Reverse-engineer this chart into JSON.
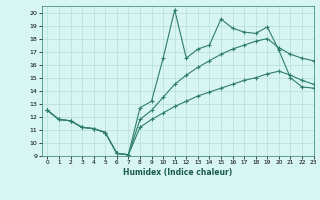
{
  "xlabel": "Humidex (Indice chaleur)",
  "bg_color": "#d6f5f3",
  "grid_color": "#b8dedd",
  "line_color": "#2e7d6e",
  "marker": "+",
  "xlim": [
    -0.5,
    23
  ],
  "ylim": [
    9,
    20.5
  ],
  "xticks": [
    0,
    1,
    2,
    3,
    4,
    5,
    6,
    7,
    8,
    9,
    10,
    11,
    12,
    13,
    14,
    15,
    16,
    17,
    18,
    19,
    20,
    21,
    22,
    23
  ],
  "yticks": [
    9,
    10,
    11,
    12,
    13,
    14,
    15,
    16,
    17,
    18,
    19,
    20
  ],
  "series": [
    {
      "x": [
        0,
        1,
        2,
        3,
        4,
        5,
        6,
        7,
        8,
        9,
        10,
        11,
        12,
        13,
        14,
        15,
        16,
        17,
        18,
        19,
        20,
        21,
        22,
        23
      ],
      "y": [
        12.5,
        11.8,
        11.7,
        11.2,
        11.1,
        10.8,
        9.2,
        9.1,
        12.7,
        13.2,
        16.5,
        20.2,
        16.5,
        17.2,
        17.5,
        19.5,
        18.8,
        18.5,
        18.4,
        18.9,
        17.1,
        15.0,
        14.3,
        14.2
      ]
    },
    {
      "x": [
        0,
        1,
        2,
        3,
        4,
        5,
        6,
        7,
        8,
        9,
        10,
        11,
        12,
        13,
        14,
        15,
        16,
        17,
        18,
        19,
        20,
        21,
        22,
        23
      ],
      "y": [
        12.5,
        11.8,
        11.7,
        11.2,
        11.1,
        10.8,
        9.2,
        9.1,
        11.8,
        12.5,
        13.5,
        14.5,
        15.2,
        15.8,
        16.3,
        16.8,
        17.2,
        17.5,
        17.8,
        18.0,
        17.3,
        16.8,
        16.5,
        16.3
      ]
    },
    {
      "x": [
        0,
        1,
        2,
        3,
        4,
        5,
        6,
        7,
        8,
        9,
        10,
        11,
        12,
        13,
        14,
        15,
        16,
        17,
        18,
        19,
        20,
        21,
        22,
        23
      ],
      "y": [
        12.5,
        11.8,
        11.7,
        11.2,
        11.1,
        10.8,
        9.2,
        9.1,
        11.2,
        11.8,
        12.3,
        12.8,
        13.2,
        13.6,
        13.9,
        14.2,
        14.5,
        14.8,
        15.0,
        15.3,
        15.5,
        15.2,
        14.8,
        14.5
      ]
    }
  ]
}
